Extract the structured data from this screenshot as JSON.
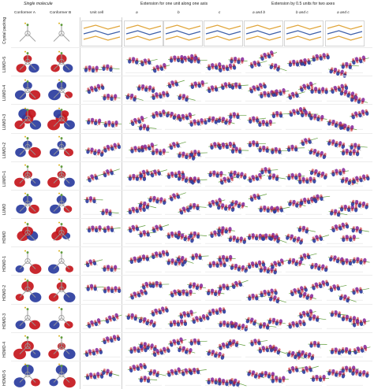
{
  "header": {
    "group_single": "Single molecule",
    "group_one_axis": "Extension for one unit along one axis",
    "group_two_axes": "Extension by 0.5 units for two axes",
    "col_conformer_a": "Conformer A",
    "col_conformer_b": "Conformer B",
    "col_unit_cell": "Unit cell",
    "col_a": "a",
    "col_b": "b",
    "col_c": "c",
    "col_ab": "a and b",
    "col_bc": "b and c",
    "col_ac": "a and c"
  },
  "rows": [
    {
      "label": "Crystal packing"
    },
    {
      "label": "LUMO+5"
    },
    {
      "label": "LUMO+4"
    },
    {
      "label": "LUMO+3"
    },
    {
      "label": "LUMO+2"
    },
    {
      "label": "LUMO+1"
    },
    {
      "label": "LUMO"
    },
    {
      "label": "HOMO"
    },
    {
      "label": "HOMO-1"
    },
    {
      "label": "HOMO-2"
    },
    {
      "label": "HOMO-3"
    },
    {
      "label": "HOMO-4"
    },
    {
      "label": "HOMO-5"
    }
  ],
  "colors": {
    "lobe_positive": "#c4161c",
    "lobe_negative": "#2a3c9e",
    "lobe_purple": "#8a2f9e",
    "bond_green": "#5f9c3a",
    "bond_gray": "#9a9a9a",
    "packing_orange": "#e0a53a",
    "packing_blue": "#3c5ea8"
  }
}
